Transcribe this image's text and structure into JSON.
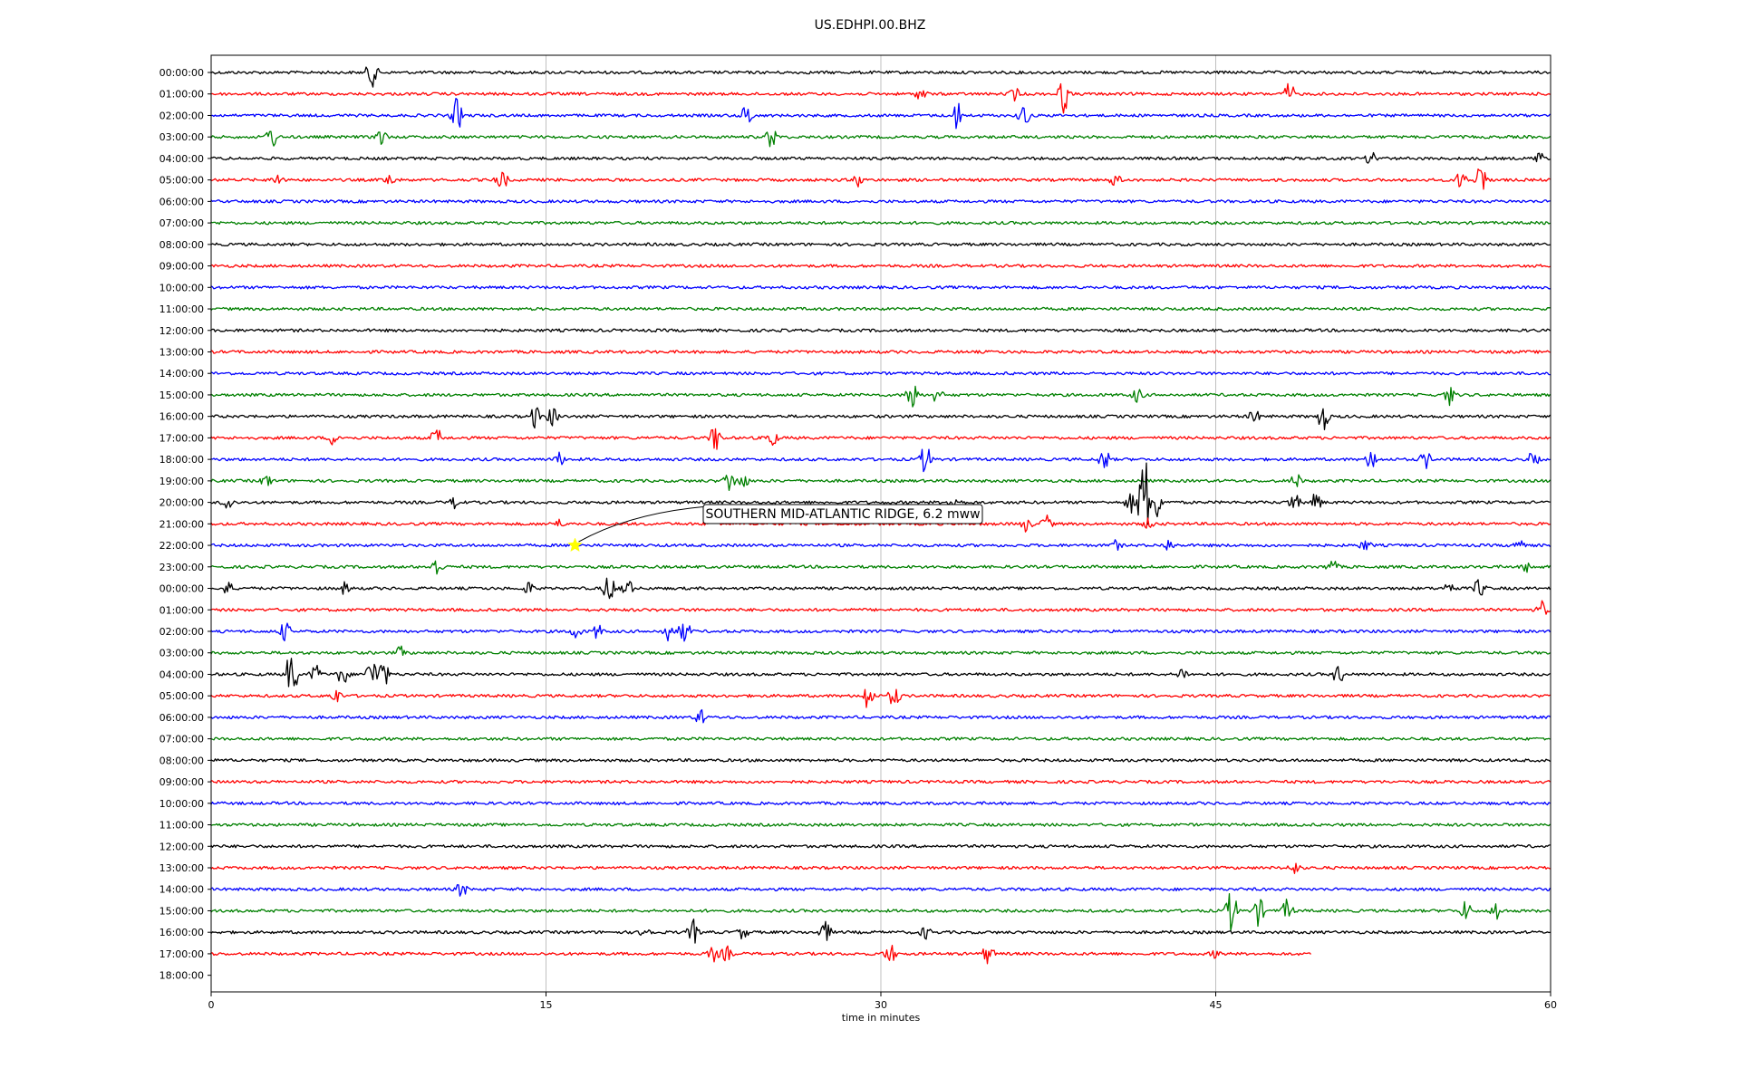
{
  "chart_data": {
    "type": "line",
    "title": "US.EDHPI.00.BHZ",
    "xlabel": "time in minutes",
    "ylabel": "",
    "xlim": [
      0,
      60
    ],
    "xticks": [
      0,
      15,
      30,
      45,
      60
    ],
    "grid": "vertical lines at 15, 30, 45",
    "row_colors": [
      "#000000",
      "#ff0000",
      "#0000ff",
      "#008000"
    ],
    "row_labels": [
      "00:00:00",
      "01:00:00",
      "02:00:00",
      "03:00:00",
      "04:00:00",
      "05:00:00",
      "06:00:00",
      "07:00:00",
      "08:00:00",
      "09:00:00",
      "10:00:00",
      "11:00:00",
      "12:00:00",
      "13:00:00",
      "14:00:00",
      "15:00:00",
      "16:00:00",
      "17:00:00",
      "18:00:00",
      "19:00:00",
      "20:00:00",
      "21:00:00",
      "22:00:00",
      "23:00:00",
      "00:00:00",
      "01:00:00",
      "02:00:00",
      "03:00:00",
      "04:00:00",
      "05:00:00",
      "06:00:00",
      "07:00:00",
      "08:00:00",
      "09:00:00",
      "10:00:00",
      "11:00:00",
      "12:00:00",
      "13:00:00",
      "14:00:00",
      "15:00:00",
      "16:00:00",
      "17:00:00",
      "18:00:00"
    ],
    "traces": [
      {
        "row": 0,
        "end": 60,
        "events": [
          [
            7.2,
            1.2
          ]
        ]
      },
      {
        "row": 1,
        "end": 60,
        "events": [
          [
            31.8,
            0.5
          ],
          [
            36,
            0.5
          ],
          [
            38.2,
            1.6
          ],
          [
            48.3,
            0.9
          ]
        ]
      },
      {
        "row": 2,
        "end": 60,
        "events": [
          [
            11,
            1.4
          ],
          [
            24,
            1
          ],
          [
            33.4,
            1.2
          ],
          [
            36.4,
            1
          ]
        ]
      },
      {
        "row": 3,
        "end": 60,
        "events": [
          [
            2.7,
            1
          ],
          [
            7.6,
            0.8
          ],
          [
            25.1,
            0.9
          ]
        ]
      },
      {
        "row": 4,
        "end": 60,
        "events": [
          [
            52,
            0.6
          ],
          [
            59.5,
            0.6
          ]
        ]
      },
      {
        "row": 5,
        "end": 60,
        "events": [
          [
            3,
            0.6
          ],
          [
            8,
            0.5
          ],
          [
            13,
            0.9
          ],
          [
            29,
            0.5
          ],
          [
            40.5,
            0.5
          ],
          [
            56,
            0.8
          ],
          [
            56.9,
            1.6
          ]
        ]
      },
      {
        "row": 6,
        "end": 60,
        "events": []
      },
      {
        "row": 7,
        "end": 60,
        "events": []
      },
      {
        "row": 8,
        "end": 60,
        "events": []
      },
      {
        "row": 9,
        "end": 60,
        "events": []
      },
      {
        "row": 10,
        "end": 60,
        "events": []
      },
      {
        "row": 11,
        "end": 60,
        "events": []
      },
      {
        "row": 12,
        "end": 60,
        "events": []
      },
      {
        "row": 13,
        "end": 60,
        "events": []
      },
      {
        "row": 14,
        "end": 60,
        "events": []
      },
      {
        "row": 15,
        "end": 60,
        "events": [
          [
            31.4,
            1.6
          ],
          [
            32.5,
            0.6
          ],
          [
            41.5,
            0.6
          ],
          [
            55.5,
            0.8
          ]
        ]
      },
      {
        "row": 16,
        "end": 60,
        "events": [
          [
            14.5,
            0.9
          ],
          [
            15.3,
            0.8
          ],
          [
            46.7,
            0.6
          ],
          [
            49.8,
            1.2
          ]
        ]
      },
      {
        "row": 17,
        "end": 60,
        "events": [
          [
            5.5,
            0.6
          ],
          [
            10.1,
            0.8
          ],
          [
            22.6,
            1.2
          ],
          [
            25.1,
            0.8
          ]
        ]
      },
      {
        "row": 18,
        "end": 60,
        "events": [
          [
            15.6,
            0.5
          ],
          [
            32,
            1.3
          ],
          [
            40,
            0.9
          ],
          [
            52,
            0.9
          ],
          [
            54.4,
            0.7
          ],
          [
            59.2,
            0.6
          ]
        ]
      },
      {
        "row": 19,
        "end": 60,
        "events": [
          [
            2.5,
            0.5
          ],
          [
            23.2,
            0.9
          ],
          [
            23.8,
            0.6
          ],
          [
            48.6,
            0.6
          ]
        ]
      },
      {
        "row": 20,
        "end": 60,
        "events": [
          [
            0.7,
            0.8
          ],
          [
            11,
            0.7
          ],
          [
            33.3,
            0.6
          ],
          [
            41.2,
            0.8
          ],
          [
            41.8,
            4.5
          ],
          [
            42.4,
            1.3
          ],
          [
            48.5,
            0.8
          ],
          [
            49.5,
            0.8
          ]
        ]
      },
      {
        "row": 21,
        "end": 60,
        "events": [
          [
            15.5,
            0.4
          ],
          [
            36.5,
            0.6
          ],
          [
            37.4,
            0.7
          ],
          [
            42,
            0.4
          ]
        ]
      },
      {
        "row": 22,
        "end": 60,
        "events": [
          [
            40.5,
            0.4
          ],
          [
            42.9,
            0.5
          ],
          [
            51.7,
            0.4
          ],
          [
            58.5,
            0.7
          ]
        ]
      },
      {
        "row": 23,
        "end": 60,
        "events": [
          [
            10.1,
            0.8
          ],
          [
            50.2,
            0.6
          ],
          [
            59,
            0.5
          ]
        ]
      },
      {
        "row": 24,
        "end": 60,
        "events": [
          [
            0.7,
            0.6
          ],
          [
            6,
            0.5
          ],
          [
            14.2,
            0.5
          ],
          [
            17.8,
            1.3
          ],
          [
            18.6,
            1
          ],
          [
            55.5,
            0.6
          ],
          [
            56.8,
            0.8
          ]
        ]
      },
      {
        "row": 25,
        "end": 60,
        "events": [
          [
            59.6,
            0.7
          ]
        ]
      },
      {
        "row": 26,
        "end": 60,
        "events": [
          [
            3.3,
            0.8
          ],
          [
            16.3,
            0.6
          ],
          [
            17.3,
            0.6
          ],
          [
            20.5,
            0.8
          ],
          [
            21.2,
            1
          ]
        ]
      },
      {
        "row": 27,
        "end": 60,
        "events": [
          [
            8.5,
            0.5
          ]
        ]
      },
      {
        "row": 28,
        "end": 60,
        "events": [
          [
            3.6,
            2.2
          ],
          [
            4.7,
            0.8
          ],
          [
            5.9,
            1
          ],
          [
            7.2,
            1.4
          ],
          [
            7.7,
            1.2
          ],
          [
            43.5,
            0.5
          ],
          [
            50.5,
            0.8
          ]
        ]
      },
      {
        "row": 29,
        "end": 60,
        "events": [
          [
            5.6,
            0.6
          ],
          [
            29.4,
            1.2
          ],
          [
            30.6,
            0.9
          ]
        ]
      },
      {
        "row": 30,
        "end": 60,
        "events": [
          [
            21.9,
            0.7
          ]
        ]
      },
      {
        "row": 31,
        "end": 60,
        "events": []
      },
      {
        "row": 32,
        "end": 60,
        "events": []
      },
      {
        "row": 33,
        "end": 60,
        "events": []
      },
      {
        "row": 34,
        "end": 60,
        "events": []
      },
      {
        "row": 35,
        "end": 60,
        "events": []
      },
      {
        "row": 36,
        "end": 60,
        "events": []
      },
      {
        "row": 37,
        "end": 60,
        "events": [
          [
            48.5,
            0.5
          ]
        ]
      },
      {
        "row": 38,
        "end": 60,
        "events": [
          [
            11.2,
            0.6
          ]
        ]
      },
      {
        "row": 39,
        "end": 60,
        "events": [
          [
            45.7,
            1.8
          ],
          [
            46.9,
            1.2
          ],
          [
            48.2,
            0.9
          ],
          [
            56.2,
            0.8
          ],
          [
            57.6,
            0.8
          ]
        ]
      },
      {
        "row": 40,
        "end": 60,
        "events": [
          [
            19.5,
            0.6
          ],
          [
            21.6,
            1
          ],
          [
            23.8,
            0.5
          ],
          [
            27.5,
            0.9
          ],
          [
            32,
            0.5
          ]
        ]
      },
      {
        "row": 41,
        "end": 49.3,
        "events": [
          [
            22.5,
            0.6
          ],
          [
            23.1,
            0.6
          ],
          [
            30.4,
            0.9
          ],
          [
            34.8,
            0.8
          ],
          [
            45,
            0.3
          ]
        ]
      }
    ],
    "annotation": {
      "text": "SOUTHERN MID-ATLANTIC RIDGE, 6.2 mww",
      "row": 22,
      "minute": 16.3
    }
  }
}
